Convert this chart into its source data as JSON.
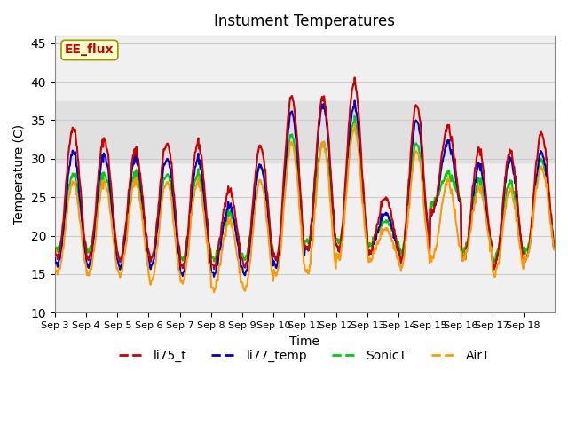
{
  "title": "Instument Temperatures",
  "xlabel": "Time",
  "ylabel": "Temperature (C)",
  "ylim": [
    10,
    46
  ],
  "yticks": [
    10,
    15,
    20,
    25,
    30,
    35,
    40,
    45
  ],
  "xtick_labels": [
    "Sep 3",
    "Sep 4",
    "Sep 5",
    "Sep 6",
    "Sep 7",
    "Sep 8",
    "Sep 9",
    "Sep 10",
    "Sep 11",
    "Sep 12",
    "Sep 13",
    "Sep 14",
    "Sep 15",
    "Sep 16",
    "Sep 17",
    "Sep 18"
  ],
  "series": {
    "li75_t": {
      "color": "#cc0000",
      "linewidth": 1.5
    },
    "li77_temp": {
      "color": "#0000cc",
      "linewidth": 1.5
    },
    "SonicT": {
      "color": "#00cc00",
      "linewidth": 1.5
    },
    "AirT": {
      "color": "#ff9900",
      "linewidth": 1.5
    }
  },
  "shaded_band": [
    29.5,
    37.5
  ],
  "background_color": "#ffffff",
  "grid_color": "#cccccc",
  "annotation_text": "EE_flux",
  "annotation_color": "#cc0000",
  "annotation_bg": "#ffffcc",
  "figsize": [
    6.4,
    4.8
  ],
  "dpi": 100
}
